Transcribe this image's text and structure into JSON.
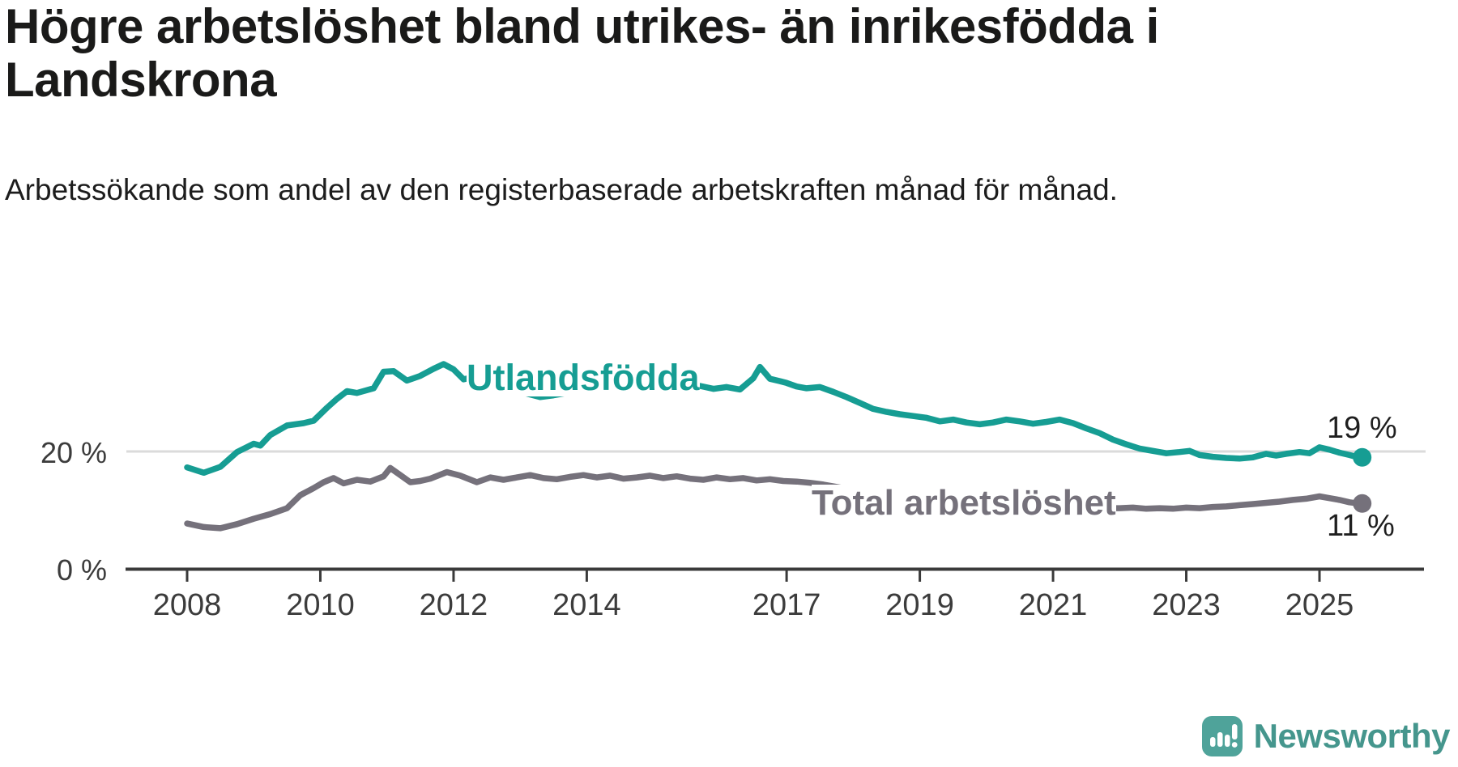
{
  "header": {
    "title": "Högre arbetslöshet bland utrikes- än inrikesfödda i Landskrona",
    "subtitle": "Arbetssökande som andel av den registerbaserade arbetskraften månad för månad."
  },
  "footer": {
    "brand": "Newsworthy",
    "brand_color": "#45968d",
    "logo_color": "#4fa39a"
  },
  "chart_data": {
    "type": "line",
    "title": "Högre arbetslöshet bland utrikes- än inrikesfödda i Landskrona",
    "subtitle": "Arbetssökande som andel av den registerbaserade arbetskraften månad för månad.",
    "unit": "%",
    "x_range": [
      2008,
      2025.75
    ],
    "y_range": [
      0,
      40
    ],
    "grid": "single horizontal gridline at 20 %",
    "legend_position": "inline labels on lines",
    "x_ticks": [
      {
        "label": "2008",
        "year": 2008
      },
      {
        "label": "2010",
        "year": 2010
      },
      {
        "label": "2012",
        "year": 2012
      },
      {
        "label": "2014",
        "year": 2014
      },
      {
        "label": "2017",
        "year": 2017
      },
      {
        "label": "2019",
        "year": 2019
      },
      {
        "label": "2021",
        "year": 2021
      },
      {
        "label": "2023",
        "year": 2023
      },
      {
        "label": "2025",
        "year": 2025
      }
    ],
    "y_ticks": [
      {
        "label": "20 %",
        "value": 20
      },
      {
        "label": "0 %",
        "value": 0
      }
    ],
    "series": [
      {
        "name": "Utlandsfödda",
        "color": "#169d93",
        "end_value": 19,
        "end_label": "19 %",
        "points": [
          [
            2008.0,
            17.3
          ],
          [
            2008.25,
            16.4
          ],
          [
            2008.5,
            17.4
          ],
          [
            2008.75,
            19.9
          ],
          [
            2009.0,
            21.3
          ],
          [
            2009.1,
            21.0
          ],
          [
            2009.25,
            22.8
          ],
          [
            2009.5,
            24.4
          ],
          [
            2009.75,
            24.8
          ],
          [
            2009.9,
            25.2
          ],
          [
            2010.1,
            27.4
          ],
          [
            2010.25,
            28.9
          ],
          [
            2010.4,
            30.2
          ],
          [
            2010.55,
            29.9
          ],
          [
            2010.8,
            30.7
          ],
          [
            2010.95,
            33.5
          ],
          [
            2011.1,
            33.6
          ],
          [
            2011.3,
            32.0
          ],
          [
            2011.5,
            32.8
          ],
          [
            2011.7,
            34.0
          ],
          [
            2011.85,
            34.8
          ],
          [
            2012.0,
            33.9
          ],
          [
            2012.15,
            32.2
          ],
          [
            2012.3,
            32.6
          ],
          [
            2012.5,
            31.9
          ],
          [
            2012.7,
            31.4
          ],
          [
            2012.9,
            30.6
          ],
          [
            2013.1,
            29.8
          ],
          [
            2013.3,
            29.2
          ],
          [
            2013.5,
            29.5
          ],
          [
            2013.7,
            29.9
          ],
          [
            2013.9,
            30.3
          ],
          [
            2014.1,
            30.0
          ],
          [
            2014.3,
            30.4
          ],
          [
            2014.5,
            30.1
          ],
          [
            2014.7,
            30.5
          ],
          [
            2014.9,
            30.2
          ],
          [
            2015.1,
            30.6
          ],
          [
            2015.3,
            30.3
          ],
          [
            2015.5,
            30.8
          ],
          [
            2015.7,
            31.1
          ],
          [
            2015.9,
            30.6
          ],
          [
            2016.1,
            30.9
          ],
          [
            2016.3,
            30.5
          ],
          [
            2016.5,
            32.4
          ],
          [
            2016.6,
            34.3
          ],
          [
            2016.75,
            32.3
          ],
          [
            2016.9,
            31.9
          ],
          [
            2017.0,
            31.6
          ],
          [
            2017.15,
            31.0
          ],
          [
            2017.3,
            30.7
          ],
          [
            2017.5,
            30.9
          ],
          [
            2017.7,
            30.1
          ],
          [
            2017.9,
            29.2
          ],
          [
            2018.1,
            28.2
          ],
          [
            2018.3,
            27.2
          ],
          [
            2018.5,
            26.7
          ],
          [
            2018.7,
            26.3
          ],
          [
            2018.9,
            26.0
          ],
          [
            2019.1,
            25.7
          ],
          [
            2019.3,
            25.1
          ],
          [
            2019.5,
            25.4
          ],
          [
            2019.7,
            24.9
          ],
          [
            2019.9,
            24.6
          ],
          [
            2020.1,
            24.9
          ],
          [
            2020.3,
            25.4
          ],
          [
            2020.5,
            25.1
          ],
          [
            2020.7,
            24.7
          ],
          [
            2020.9,
            25.0
          ],
          [
            2021.1,
            25.4
          ],
          [
            2021.3,
            24.8
          ],
          [
            2021.5,
            23.9
          ],
          [
            2021.7,
            23.1
          ],
          [
            2021.9,
            22.0
          ],
          [
            2022.1,
            21.2
          ],
          [
            2022.3,
            20.5
          ],
          [
            2022.5,
            20.1
          ],
          [
            2022.7,
            19.7
          ],
          [
            2022.9,
            19.9
          ],
          [
            2023.05,
            20.1
          ],
          [
            2023.2,
            19.4
          ],
          [
            2023.4,
            19.1
          ],
          [
            2023.6,
            18.9
          ],
          [
            2023.8,
            18.8
          ],
          [
            2024.0,
            19.0
          ],
          [
            2024.2,
            19.6
          ],
          [
            2024.35,
            19.3
          ],
          [
            2024.5,
            19.6
          ],
          [
            2024.7,
            19.9
          ],
          [
            2024.85,
            19.7
          ],
          [
            2025.0,
            20.7
          ],
          [
            2025.15,
            20.3
          ],
          [
            2025.3,
            19.8
          ],
          [
            2025.45,
            19.4
          ],
          [
            2025.58,
            19.0
          ]
        ]
      },
      {
        "name": "Total arbetslöshet",
        "color": "#75717b",
        "end_value": 11,
        "end_label": "11 %",
        "points": [
          [
            2008.0,
            7.8
          ],
          [
            2008.25,
            7.2
          ],
          [
            2008.5,
            7.0
          ],
          [
            2008.75,
            7.7
          ],
          [
            2009.0,
            8.6
          ],
          [
            2009.25,
            9.4
          ],
          [
            2009.5,
            10.4
          ],
          [
            2009.7,
            12.6
          ],
          [
            2009.9,
            13.8
          ],
          [
            2010.05,
            14.8
          ],
          [
            2010.2,
            15.5
          ],
          [
            2010.35,
            14.6
          ],
          [
            2010.55,
            15.2
          ],
          [
            2010.75,
            14.9
          ],
          [
            2010.95,
            15.8
          ],
          [
            2011.05,
            17.2
          ],
          [
            2011.2,
            16.0
          ],
          [
            2011.35,
            14.8
          ],
          [
            2011.5,
            15.0
          ],
          [
            2011.65,
            15.4
          ],
          [
            2011.9,
            16.5
          ],
          [
            2012.1,
            15.9
          ],
          [
            2012.35,
            14.8
          ],
          [
            2012.55,
            15.6
          ],
          [
            2012.75,
            15.2
          ],
          [
            2012.95,
            15.6
          ],
          [
            2013.15,
            16.0
          ],
          [
            2013.35,
            15.5
          ],
          [
            2013.55,
            15.3
          ],
          [
            2013.75,
            15.7
          ],
          [
            2013.95,
            16.0
          ],
          [
            2014.15,
            15.6
          ],
          [
            2014.35,
            15.9
          ],
          [
            2014.55,
            15.4
          ],
          [
            2014.75,
            15.6
          ],
          [
            2014.95,
            15.9
          ],
          [
            2015.15,
            15.5
          ],
          [
            2015.35,
            15.8
          ],
          [
            2015.55,
            15.4
          ],
          [
            2015.75,
            15.2
          ],
          [
            2015.95,
            15.6
          ],
          [
            2016.15,
            15.3
          ],
          [
            2016.35,
            15.5
          ],
          [
            2016.55,
            15.1
          ],
          [
            2016.75,
            15.3
          ],
          [
            2016.95,
            15.0
          ],
          [
            2017.15,
            14.9
          ],
          [
            2017.35,
            14.7
          ],
          [
            2017.55,
            14.4
          ],
          [
            2017.75,
            14.0
          ],
          [
            2018.0,
            13.5
          ],
          [
            2018.25,
            13.0
          ],
          [
            2018.5,
            12.6
          ],
          [
            2018.75,
            12.2
          ],
          [
            2019.0,
            11.9
          ],
          [
            2019.25,
            11.5
          ],
          [
            2019.5,
            11.2
          ],
          [
            2019.75,
            11.0
          ],
          [
            2020.0,
            10.9
          ],
          [
            2020.25,
            11.1
          ],
          [
            2020.5,
            11.3
          ],
          [
            2020.75,
            11.1
          ],
          [
            2021.0,
            10.9
          ],
          [
            2021.25,
            10.7
          ],
          [
            2021.5,
            10.5
          ],
          [
            2021.75,
            10.4
          ],
          [
            2022.0,
            10.4
          ],
          [
            2022.2,
            10.5
          ],
          [
            2022.4,
            10.3
          ],
          [
            2022.6,
            10.4
          ],
          [
            2022.8,
            10.3
          ],
          [
            2023.0,
            10.5
          ],
          [
            2023.2,
            10.4
          ],
          [
            2023.4,
            10.6
          ],
          [
            2023.6,
            10.7
          ],
          [
            2023.8,
            10.9
          ],
          [
            2024.0,
            11.1
          ],
          [
            2024.2,
            11.3
          ],
          [
            2024.4,
            11.5
          ],
          [
            2024.6,
            11.8
          ],
          [
            2024.8,
            12.0
          ],
          [
            2025.0,
            12.4
          ],
          [
            2025.15,
            12.1
          ],
          [
            2025.3,
            11.8
          ],
          [
            2025.45,
            11.4
          ],
          [
            2025.58,
            11.2
          ]
        ]
      }
    ]
  }
}
